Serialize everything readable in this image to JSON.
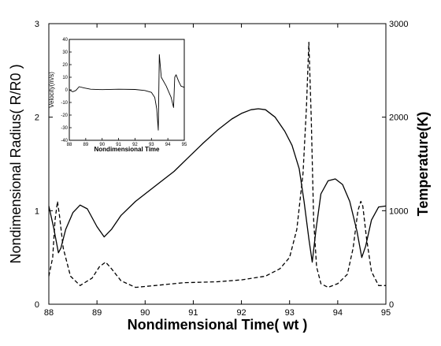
{
  "chart_data": [
    {
      "type": "line",
      "xlabel": "Nondimensional Time( wt )",
      "ylabel": "Nondimensional Radius( R/R0 )",
      "y2label": "Temperature(K)",
      "xlim": [
        88,
        95
      ],
      "ylim": [
        0,
        3
      ],
      "y2lim": [
        0,
        3000
      ],
      "x_ticks": [
        "88",
        "89",
        "90",
        "91",
        "92",
        "93",
        "94",
        "95"
      ],
      "y_ticks": [
        "0",
        "1",
        "2",
        "3"
      ],
      "y2_ticks": [
        "0",
        "1000",
        "2000",
        "3000"
      ],
      "series": [
        {
          "axis": "left",
          "style": "solid",
          "x": [
            88.0,
            88.1,
            88.2,
            88.25,
            88.35,
            88.5,
            88.65,
            88.8,
            89.0,
            89.15,
            89.3,
            89.5,
            89.8,
            90.0,
            90.3,
            90.6,
            90.9,
            91.2,
            91.5,
            91.8,
            92.0,
            92.2,
            92.35,
            92.5,
            92.7,
            92.9,
            93.05,
            93.2,
            93.3,
            93.4,
            93.47,
            93.55,
            93.65,
            93.8,
            93.95,
            94.1,
            94.25,
            94.4,
            94.5,
            94.58,
            94.7,
            94.85,
            95.0
          ],
          "y": [
            1.05,
            0.82,
            0.55,
            0.6,
            0.8,
            0.98,
            1.06,
            1.02,
            0.83,
            0.72,
            0.8,
            0.95,
            1.1,
            1.18,
            1.3,
            1.42,
            1.57,
            1.72,
            1.86,
            1.98,
            2.04,
            2.08,
            2.09,
            2.08,
            2.0,
            1.85,
            1.7,
            1.45,
            1.1,
            0.7,
            0.45,
            0.8,
            1.18,
            1.32,
            1.34,
            1.28,
            1.1,
            0.78,
            0.5,
            0.62,
            0.9,
            1.04,
            1.05
          ]
        },
        {
          "axis": "right",
          "style": "dashed",
          "x": [
            88.0,
            88.08,
            88.13,
            88.18,
            88.22,
            88.3,
            88.45,
            88.65,
            88.9,
            89.05,
            89.18,
            89.3,
            89.5,
            89.8,
            90.2,
            90.8,
            91.5,
            92.0,
            92.5,
            92.8,
            93.0,
            93.15,
            93.28,
            93.35,
            93.4,
            93.45,
            93.5,
            93.56,
            93.65,
            93.8,
            94.0,
            94.2,
            94.32,
            94.42,
            94.48,
            94.52,
            94.6,
            94.7,
            94.85,
            95.0
          ],
          "y": [
            300,
            500,
            900,
            1100,
            950,
            600,
            300,
            200,
            280,
            400,
            450,
            380,
            250,
            180,
            200,
            230,
            240,
            260,
            300,
            380,
            500,
            800,
            1400,
            2100,
            2800,
            2000,
            900,
            400,
            220,
            180,
            220,
            320,
            600,
            1000,
            1100,
            1050,
            700,
            350,
            200,
            200
          ]
        }
      ]
    },
    {
      "type": "line",
      "xlabel": "Nondimensional Time",
      "ylabel": "Velocity(m/s)",
      "xlim": [
        88,
        95
      ],
      "ylim": [
        -40,
        40
      ],
      "x_ticks": [
        "88",
        "89",
        "90",
        "91",
        "92",
        "93",
        "94",
        "95"
      ],
      "y_ticks": [
        "-40",
        "-30",
        "-20",
        "-10",
        "0",
        "10",
        "20",
        "30",
        "40"
      ],
      "series": [
        {
          "style": "solid",
          "x": [
            88.0,
            88.2,
            88.4,
            88.6,
            88.9,
            89.3,
            90.0,
            91.0,
            92.0,
            92.6,
            93.0,
            93.2,
            93.32,
            93.42,
            93.48,
            93.6,
            93.9,
            94.2,
            94.35,
            94.42,
            94.5,
            94.65,
            94.8,
            95.0
          ],
          "y": [
            0,
            -1.5,
            -0.5,
            2.5,
            1.5,
            0.5,
            0.2,
            0.5,
            0.3,
            -0.5,
            -2,
            -6,
            -15,
            -32,
            28,
            10,
            3,
            -6,
            -14,
            10,
            12,
            7,
            3,
            2
          ]
        }
      ]
    }
  ]
}
